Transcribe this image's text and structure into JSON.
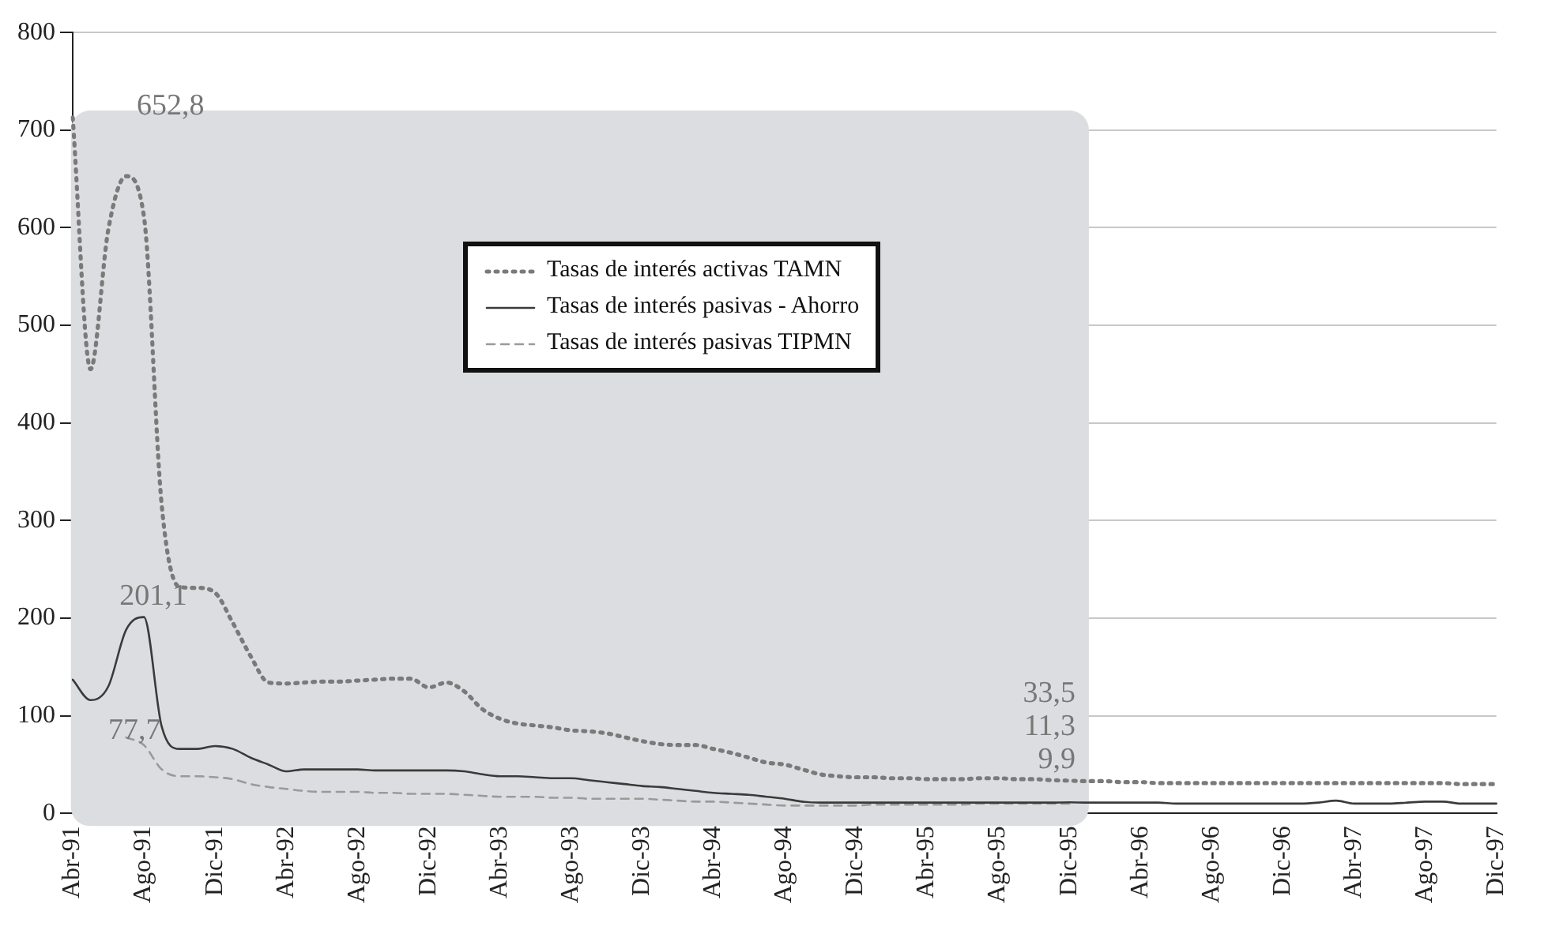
{
  "chart_data": {
    "type": "line",
    "categories": [
      "Abr-91",
      null,
      null,
      null,
      "Ago-91",
      null,
      null,
      null,
      "Dic-91",
      null,
      null,
      null,
      "Abr-92",
      null,
      null,
      null,
      "Ago-92",
      null,
      null,
      null,
      "Dic-92",
      null,
      null,
      null,
      "Abr-93",
      null,
      null,
      null,
      "Ago-93",
      null,
      null,
      null,
      "Dic-93",
      null,
      null,
      null,
      "Abr-94",
      null,
      null,
      null,
      "Ago-94",
      null,
      null,
      null,
      "Dic-94",
      null,
      null,
      null,
      "Abr-95",
      null,
      null,
      null,
      "Ago-95",
      null,
      null,
      null,
      "Dic-95",
      null,
      null,
      null,
      "Abr-96",
      null,
      null,
      null,
      "Ago-96",
      null,
      null,
      null,
      "Dic-96",
      null,
      null,
      null,
      "Abr-97",
      null,
      null,
      null,
      "Ago-97",
      null,
      null,
      null,
      "Dic-97"
    ],
    "series": [
      {
        "name": "Tasas de interés activas TAMN",
        "color": "#7a7a7a",
        "line_style": "dotted",
        "values": [
          713,
          455,
          598,
          652.8,
          612,
          316,
          232,
          231,
          226,
          195,
          161,
          134,
          133,
          134,
          135,
          135,
          136,
          137,
          138,
          138,
          129,
          134,
          125,
          107,
          97,
          92,
          90,
          88,
          85,
          84,
          82,
          78,
          74,
          71,
          70,
          70,
          66,
          62,
          57,
          52,
          50,
          45,
          40,
          38,
          37,
          37,
          36,
          36,
          35,
          35,
          35,
          36,
          36,
          35,
          35,
          34,
          33.5,
          33,
          33,
          32,
          32,
          31,
          31,
          31,
          31,
          31,
          31,
          31,
          31,
          31,
          31,
          31,
          31,
          31,
          31,
          31,
          31,
          31,
          30,
          30,
          30
        ]
      },
      {
        "name": "Tasas de interés pasivas - Ahorro",
        "color": "#3a3a3a",
        "line_style": "solid",
        "values": [
          137,
          116,
          130,
          188,
          201.1,
          89,
          66,
          66,
          69,
          66,
          57,
          50,
          43,
          45,
          45,
          45,
          45,
          44,
          44,
          44,
          44,
          44,
          43,
          40,
          38,
          38,
          37,
          36,
          36,
          34,
          32,
          30,
          28,
          27,
          25,
          23,
          21,
          20,
          19,
          17,
          15,
          12,
          11,
          11,
          11,
          11,
          11,
          11,
          11,
          11,
          11,
          11,
          11,
          11,
          11,
          11,
          11.3,
          11,
          11,
          11,
          11,
          11,
          10,
          10,
          10,
          10,
          10,
          10,
          10,
          10,
          11,
          13,
          10,
          10,
          10,
          11,
          12,
          12,
          10,
          10,
          10
        ]
      },
      {
        "name": "Tasas de interés pasivas TIPMN",
        "color": "#9a9a9a",
        "line_style": "dashed",
        "values": [
          null,
          null,
          null,
          77.7,
          70,
          45,
          38,
          38,
          37,
          35,
          30,
          27,
          25,
          23,
          22,
          22,
          22,
          21,
          21,
          20,
          20,
          20,
          19,
          18,
          17,
          17,
          17,
          16,
          16,
          15,
          15,
          15,
          15,
          14,
          13,
          12,
          12,
          11,
          10,
          9,
          8,
          8,
          8,
          8,
          8,
          9,
          9,
          9,
          9,
          9,
          9,
          10,
          10,
          10,
          10,
          10,
          9.9,
          null,
          null,
          null,
          null,
          null,
          null,
          null,
          null,
          null,
          null,
          null,
          null,
          null,
          null,
          null,
          null,
          null,
          null,
          null,
          null,
          null,
          null,
          null,
          null
        ]
      }
    ],
    "ylim": [
      0,
      800
    ],
    "yticks": [
      0,
      100,
      200,
      300,
      400,
      500,
      600,
      700,
      800
    ],
    "grid": "y",
    "legend": "top",
    "marker": "none",
    "bands": [
      {
        "axis": "x",
        "from": "Abr-91",
        "to": "Dic-95",
        "color": "#dcdde0"
      }
    ],
    "annotations": [
      "652,8",
      {
        "text": "201,1",
        "x": "Ago-91",
        "y": 201.1
      },
      "77,7",
      {
        "text": "33,5",
        "x": "Dic-95",
        "y": 33.5
      },
      {
        "text": "11,3",
        "x": "Dic-95",
        "y": 11.3
      },
      {
        "text": "9,9",
        "x": "Dic-95",
        "y": 9.9
      }
    ]
  }
}
